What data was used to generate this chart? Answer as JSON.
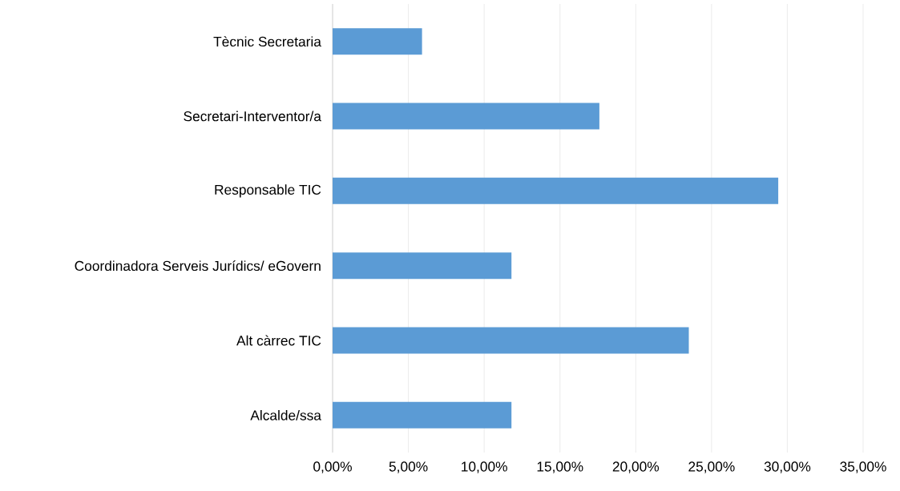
{
  "chart_data": {
    "type": "bar",
    "orientation": "horizontal",
    "categories": [
      "Tècnic Secretaria",
      "Secretari-Interventor/a",
      "Responsable TIC",
      "Coordinadora Serveis Jurídics/ eGovern",
      "Alt càrrec TIC",
      "Alcalde/ssa"
    ],
    "values": [
      5.9,
      17.6,
      29.4,
      11.8,
      23.5,
      11.8
    ],
    "color": "#5b9bd5",
    "xlim": [
      0,
      35
    ],
    "xticks": [
      {
        "value": 0,
        "label": "0,00%"
      },
      {
        "value": 5,
        "label": "5,00%"
      },
      {
        "value": 10,
        "label": "10,00%"
      },
      {
        "value": 15,
        "label": "15,00%"
      },
      {
        "value": 20,
        "label": "20,00%"
      },
      {
        "value": 25,
        "label": "25,00%"
      },
      {
        "value": 30,
        "label": "30,00%"
      },
      {
        "value": 35,
        "label": "35,00%"
      }
    ],
    "grid": "x"
  }
}
